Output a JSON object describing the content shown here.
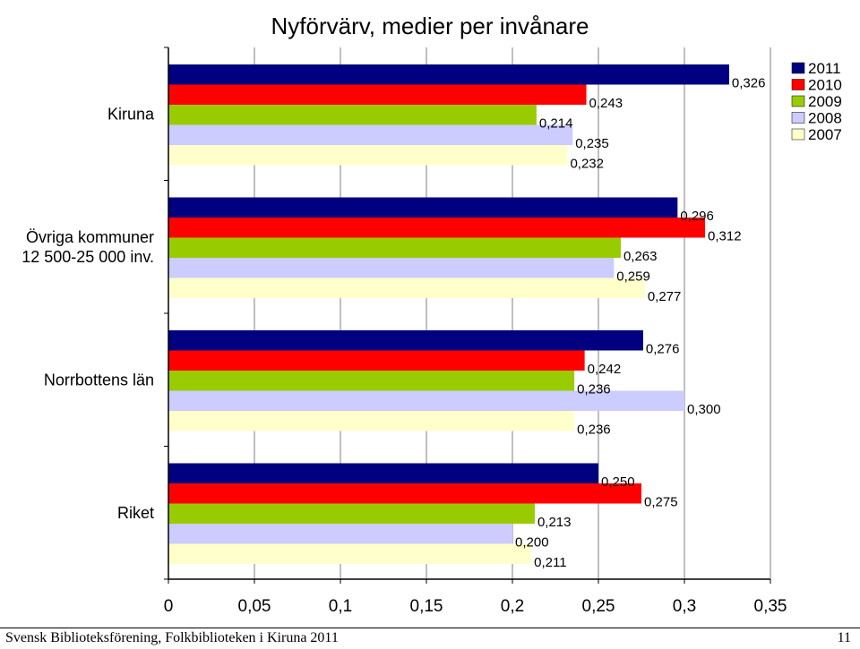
{
  "chart_data": {
    "type": "bar",
    "orientation": "horizontal",
    "title": "Nyförvärv, medier per invånare",
    "categories": [
      "Kiruna",
      "Övriga kommuner\n12 500-25 000 inv.",
      "Norrbottens län",
      "Riket"
    ],
    "series": [
      {
        "name": "2011",
        "color": "#000080",
        "values": [
          0.326,
          0.296,
          0.276,
          0.25
        ],
        "labels": [
          "0,326",
          "0,296",
          "0,276",
          "0,250"
        ]
      },
      {
        "name": "2010",
        "color": "#ff0000",
        "values": [
          0.243,
          0.312,
          0.242,
          0.275
        ],
        "labels": [
          "0,243",
          "0,312",
          "0,242",
          "0,275"
        ]
      },
      {
        "name": "2009",
        "color": "#99cc00",
        "values": [
          0.214,
          0.263,
          0.236,
          0.213
        ],
        "labels": [
          "0,214",
          "0,263",
          "0,236",
          "0,213"
        ]
      },
      {
        "name": "2008",
        "color": "#ccccff",
        "values": [
          0.235,
          0.259,
          0.3,
          0.2
        ],
        "labels": [
          "0,235",
          "0,259",
          "0,300",
          "0,200"
        ]
      },
      {
        "name": "2007",
        "color": "#ffffcc",
        "values": [
          0.232,
          0.277,
          0.236,
          0.211
        ],
        "labels": [
          "0,232",
          "0,277",
          "0,236",
          "0,211"
        ]
      }
    ],
    "xlim": [
      0,
      0.35
    ],
    "xticks": [
      0,
      0.05,
      0.1,
      0.15,
      0.2,
      0.25,
      0.3,
      0.35
    ],
    "xtick_labels": [
      "0",
      "0,05",
      "0,1",
      "0,15",
      "0,2",
      "0,25",
      "0,3",
      "0,35"
    ],
    "xlabel": "",
    "ylabel": "",
    "grid": "vertical",
    "legend_position": "top-right"
  },
  "footer": {
    "left": "Svensk Biblioteksförening, Folkbiblioteken i Kiruna 2011",
    "right": "11"
  }
}
